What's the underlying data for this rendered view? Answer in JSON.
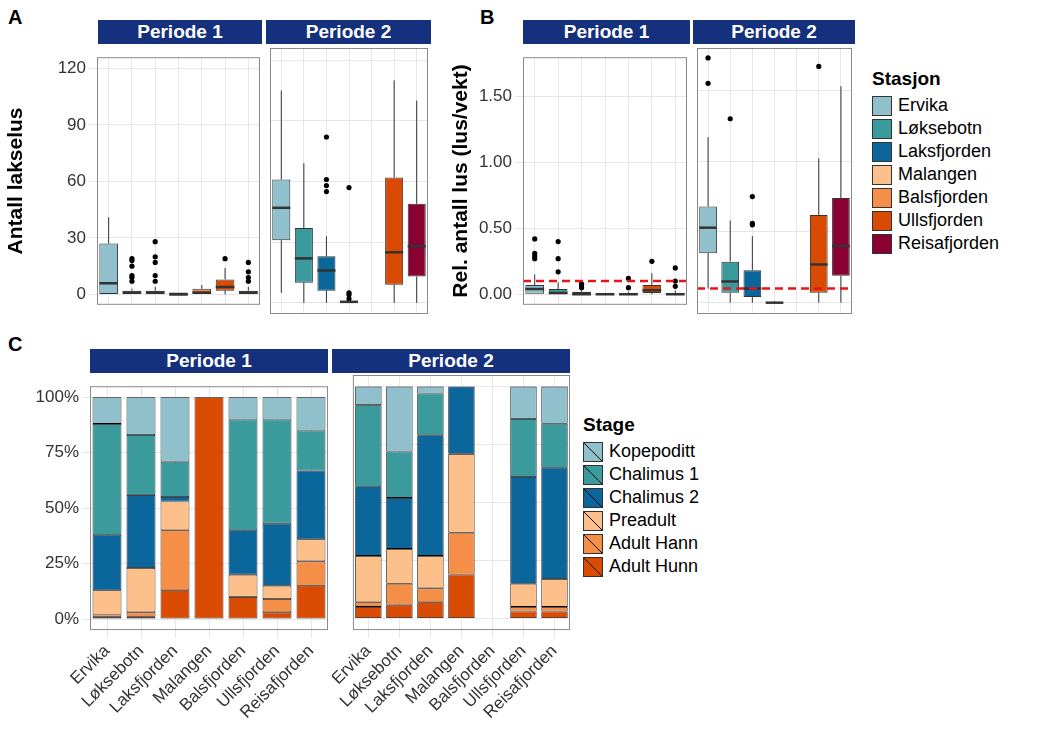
{
  "chart_data": [
    {
      "type": "boxplot",
      "panel": "A",
      "ylabel": "Antall lakselus",
      "facets": [
        "Periode 1",
        "Periode 2"
      ],
      "categories": [
        "Ervika",
        "Løksebotn",
        "Laksfjorden",
        "Malangen",
        "Balsfjorden",
        "Ullsfjorden",
        "Reisafjorden"
      ],
      "colors": [
        "#8fc0cc",
        "#3a9a9c",
        "#0b669b",
        "#fdc08b",
        "#f58f48",
        "#d94a03",
        "#8b0032"
      ],
      "ylim": [
        -5.5,
        126
      ],
      "yticks": [
        0,
        30,
        60,
        90,
        120
      ],
      "grid": true,
      "tick_labels": "y",
      "boxes": [
        [
          {
            "min": 0,
            "q1": 0,
            "median": 6,
            "q3": 27,
            "max": 41,
            "outliers": []
          },
          {
            "min": 0,
            "q1": 0,
            "median": 1,
            "q3": 2,
            "max": 3,
            "outliers": [
              7,
              9,
              10,
              15,
              18,
              19
            ]
          },
          {
            "min": 0,
            "q1": 0,
            "median": 1,
            "q3": 2,
            "max": 4,
            "outliers": [
              7,
              10,
              17,
              20,
              28
            ]
          },
          {
            "min": 0,
            "q1": 0,
            "median": 0,
            "q3": 1,
            "max": 1,
            "outliers": []
          },
          {
            "min": 0,
            "q1": 0,
            "median": 1,
            "q3": 3,
            "max": 5,
            "outliers": []
          },
          {
            "min": 0,
            "q1": 2,
            "median": 4,
            "q3": 8,
            "max": 14,
            "outliers": [
              19
            ]
          },
          {
            "min": 0,
            "q1": 0,
            "median": 1,
            "q3": 2,
            "max": 4,
            "outliers": [
              7,
              9,
              12,
              17
            ]
          }
        ],
        [
          {
            "min": 5,
            "q1": 31,
            "median": 47,
            "q3": 61,
            "max": 105,
            "outliers": []
          },
          {
            "min": 0,
            "q1": 10,
            "median": 22,
            "q3": 37,
            "max": 69,
            "outliers": []
          },
          {
            "min": 0,
            "q1": 6,
            "median": 16,
            "q3": 23,
            "max": 33,
            "outliers": [
              55,
              58,
              61,
              82
            ]
          },
          {
            "min": 0,
            "q1": 0,
            "median": 0.5,
            "q3": 1,
            "max": 1,
            "outliers": [
              2,
              4,
              5,
              57
            ]
          },
          null,
          {
            "min": 0,
            "q1": 9,
            "median": 25,
            "q3": 62,
            "max": 110,
            "outliers": []
          },
          {
            "min": 0,
            "q1": 13,
            "median": 28,
            "q3": 49,
            "max": 100,
            "outliers": []
          }
        ]
      ]
    },
    {
      "type": "boxplot",
      "panel": "B",
      "ylabel": "Rel. antall lus (lus/vekt)",
      "facets": [
        "Periode 1",
        "Periode 2"
      ],
      "categories": [
        "Ervika",
        "Løksebotn",
        "Laksfjorden",
        "Malangen",
        "Balsfjorden",
        "Ullsfjorden",
        "Reisafjorden"
      ],
      "colors": [
        "#8fc0cc",
        "#3a9a9c",
        "#0b669b",
        "#fdc08b",
        "#f58f48",
        "#d94a03",
        "#8b0032"
      ],
      "ylim": [
        -0.08,
        1.8
      ],
      "yticks": [
        {
          "value": 0,
          "label": "0.00"
        },
        {
          "value": 0.5,
          "label": "0.50"
        },
        {
          "value": 1,
          "label": "1.00"
        },
        {
          "value": 1.5,
          "label": "1.50"
        }
      ],
      "grid": true,
      "tick_labels": "y",
      "legend": "right",
      "legend_title": "Stasjon",
      "reference_line": {
        "value": 0.1,
        "color": "#e8141c",
        "line_style": "dashed"
      },
      "boxes": [
        [
          {
            "min": 0,
            "q1": 0,
            "median": 0.04,
            "q3": 0.07,
            "max": 0.15,
            "outliers": [
              0.27,
              0.29,
              0.31,
              0.42
            ]
          },
          {
            "min": 0,
            "q1": 0,
            "median": 0.01,
            "q3": 0.04,
            "max": 0.09,
            "outliers": [
              0.17,
              0.27,
              0.4
            ]
          },
          {
            "min": 0,
            "q1": 0,
            "median": 0,
            "q3": 0.02,
            "max": 0.04,
            "outliers": [
              0.05,
              0.07,
              0.08
            ]
          },
          {
            "min": 0,
            "q1": 0,
            "median": 0,
            "q3": 0.005,
            "max": 0.01,
            "outliers": []
          },
          {
            "min": 0,
            "q1": 0,
            "median": 0,
            "q3": 0.01,
            "max": 0.02,
            "outliers": [
              0.05,
              0.12
            ]
          },
          {
            "min": 0,
            "q1": 0.01,
            "median": 0.03,
            "q3": 0.07,
            "max": 0.16,
            "outliers": [
              0.25
            ]
          },
          {
            "min": 0,
            "q1": 0,
            "median": 0,
            "q3": 0.01,
            "max": 0.03,
            "outliers": [
              0.06,
              0.1,
              0.2
            ]
          }
        ],
        [
          {
            "min": 0.1,
            "q1": 0.35,
            "median": 0.53,
            "q3": 0.68,
            "max": 1.17,
            "outliers": [
              1.55,
              1.73
            ]
          },
          {
            "min": 0,
            "q1": 0.07,
            "median": 0.15,
            "q3": 0.29,
            "max": 0.58,
            "outliers": [
              1.3
            ]
          },
          {
            "min": 0,
            "q1": 0.04,
            "median": 0.1,
            "q3": 0.23,
            "max": 0.47,
            "outliers": [
              0.55,
              0.56,
              0.75
            ]
          },
          {
            "min": 0,
            "q1": 0,
            "median": 0,
            "q3": 0.005,
            "max": 0.01,
            "outliers": []
          },
          null,
          {
            "min": 0,
            "q1": 0.07,
            "median": 0.27,
            "q3": 0.62,
            "max": 1.02,
            "outliers": [
              1.67
            ]
          },
          {
            "min": 0,
            "q1": 0.19,
            "median": 0.4,
            "q3": 0.74,
            "max": 1.53,
            "outliers": []
          }
        ]
      ]
    },
    {
      "type": "bar",
      "panel": "C",
      "stacked": true,
      "facets": [
        "Periode 1",
        "Periode 2"
      ],
      "categories": [
        "Ervika",
        "Løksebotn",
        "Laksfjorden",
        "Malangen",
        "Balsfjorden",
        "Ullsfjorden",
        "Reisafjorden"
      ],
      "ylim": [
        -5,
        105
      ],
      "yticks": [
        {
          "value": 0,
          "label": "0%"
        },
        {
          "value": 25,
          "label": "25%"
        },
        {
          "value": 50,
          "label": "50%"
        },
        {
          "value": 75,
          "label": "75%"
        },
        {
          "value": 100,
          "label": "100%"
        }
      ],
      "grid": true,
      "legend": "right",
      "legend_title": "Stage",
      "series": [
        {
          "name": "Adult Hunn",
          "color": "#d94a03",
          "values": [
            [
              1,
              1,
              13,
              100,
              10,
              3,
              15
            ],
            [
              5,
              6,
              7,
              19,
              null,
              3,
              3
            ]
          ]
        },
        {
          "name": "Adult Hann",
          "color": "#f58f48",
          "values": [
            [
              1,
              2,
              27,
              0,
              0,
              6,
              11
            ],
            [
              2,
              9,
              6,
              18,
              null,
              2,
              2
            ]
          ]
        },
        {
          "name": "Preadult",
          "color": "#fdc08b",
          "values": [
            [
              11,
              20,
              13,
              0,
              10,
              6,
              10
            ],
            [
              20,
              15,
              14,
              34,
              null,
              10,
              12
            ]
          ]
        },
        {
          "name": "Chalimus 2",
          "color": "#0b669b",
          "values": [
            [
              25,
              33,
              2,
              0,
              20,
              28,
              31
            ],
            [
              30,
              22,
              52,
              29,
              null,
              46,
              48
            ]
          ]
        },
        {
          "name": "Chalimus 1",
          "color": "#3a9a9c",
          "values": [
            [
              50,
              27,
              16,
              0,
              50,
              47,
              18
            ],
            [
              35,
              20,
              18,
              0,
              null,
              25,
              19
            ]
          ]
        },
        {
          "name": "Kopepoditt",
          "color": "#8fc0cc",
          "values": [
            [
              12,
              17,
              29,
              0,
              10,
              10,
              15
            ],
            [
              8,
              28,
              3,
              0,
              null,
              14,
              16
            ]
          ]
        }
      ]
    }
  ]
}
